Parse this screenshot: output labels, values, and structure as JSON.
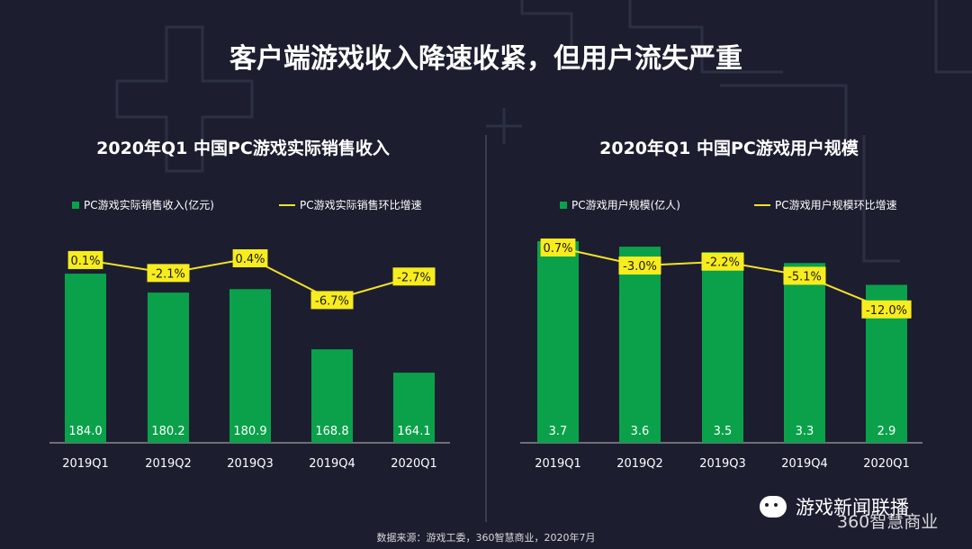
{
  "title": "客户端游戏收入降速收紧，但用户流失严重",
  "source": "数据来源：游戏工委，360智慧商业，2020年7月",
  "watermark": "游戏新闻联播",
  "brand": "360智慧商业",
  "colors": {
    "bar": "#0aa14a",
    "line": "#f2e12a",
    "label_bg": "#f7ec1e",
    "background": "#1c1e30"
  },
  "chart_data": [
    {
      "type": "bar",
      "title": "2020年Q1 中国PC游戏实际销售收入",
      "categories": [
        "2019Q1",
        "2019Q2",
        "2019Q3",
        "2019Q4",
        "2020Q1"
      ],
      "legend_bar": "PC游戏实际销售收入(亿元)",
      "legend_line": "PC游戏实际销售环比增速",
      "series": [
        {
          "name": "PC游戏实际销售收入(亿元)",
          "kind": "bar",
          "values": [
            184.0,
            180.2,
            180.9,
            168.8,
            164.1
          ],
          "labels": [
            "184.0",
            "180.2",
            "180.9",
            "168.8",
            "164.1"
          ]
        },
        {
          "name": "PC游戏实际销售环比增速",
          "kind": "line",
          "values": [
            0.1,
            -2.1,
            0.4,
            -6.7,
            -2.7
          ],
          "labels": [
            "0.1%",
            "-2.1%",
            "0.4%",
            "-6.7%",
            "-2.7%"
          ]
        }
      ],
      "bar_ylim": [
        150,
        188
      ],
      "line_ylim": [
        -10,
        3
      ]
    },
    {
      "type": "bar",
      "title": "2020年Q1 中国PC游戏用户规模",
      "categories": [
        "2019Q1",
        "2019Q2",
        "2019Q3",
        "2019Q4",
        "2020Q1"
      ],
      "legend_bar": "PC游戏用户规模(亿人)",
      "legend_line": "PC游戏用户规模环比增速",
      "series": [
        {
          "name": "PC游戏用户规模(亿人)",
          "kind": "bar",
          "values": [
            3.7,
            3.6,
            3.5,
            3.3,
            2.9
          ],
          "labels": [
            "3.7",
            "3.6",
            "3.5",
            "3.3",
            "2.9"
          ]
        },
        {
          "name": "PC游戏用户规模环比增速",
          "kind": "line",
          "values": [
            0.7,
            -3.0,
            -2.2,
            -5.1,
            -12.0
          ],
          "labels": [
            "0.7%",
            "-3.0%",
            "-2.2%",
            "-5.1%",
            "-12.0%"
          ]
        }
      ],
      "bar_ylim": [
        0,
        3.8
      ],
      "line_ylim": [
        -15,
        2
      ]
    }
  ]
}
